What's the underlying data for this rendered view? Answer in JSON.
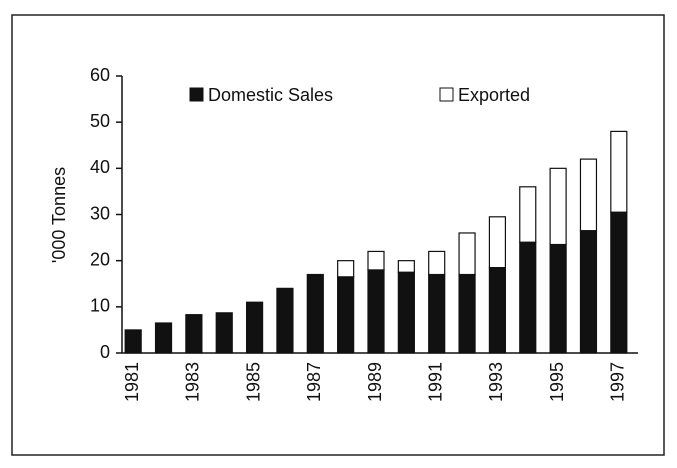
{
  "chart_data": {
    "type": "stacked_bar",
    "y_label": "'000 Tonnes",
    "categories": [
      "1981",
      null,
      "1983",
      null,
      "1985",
      null,
      "1987",
      null,
      "1989",
      null,
      "1991",
      null,
      "1993",
      null,
      "1995",
      null,
      "1997"
    ],
    "series": [
      {
        "name": "Domestic Sales",
        "color": "#111111",
        "values": [
          5,
          6.5,
          8.3,
          8.7,
          11,
          14,
          17,
          16.5,
          18,
          17.5,
          17,
          17,
          18.5,
          24,
          23.5,
          26.5,
          30.5
        ]
      },
      {
        "name": "Exported",
        "color": "#ffffff",
        "values": [
          0,
          0,
          0,
          0,
          0,
          0,
          0,
          3.5,
          4,
          2.5,
          5,
          9,
          11,
          12,
          16.5,
          15.5,
          17.5
        ]
      }
    ],
    "ylim": [
      0,
      60
    ],
    "yticks": [
      0,
      10,
      20,
      30,
      40,
      50,
      60
    ],
    "grid": false
  }
}
